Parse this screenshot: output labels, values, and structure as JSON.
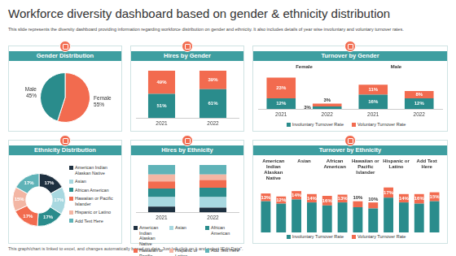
{
  "title": "Workforce diversity dashboard based on gender & ethnicity distribution",
  "subtitle": "This slide represents the diversity dashboard providing information regarding workforce distribution on gender and ethnicity. It also includes details of year wise involuntary and voluntary turnover rates.",
  "footer": "This graph/chart is linked to excel, and changes automatically based on data. Just left click on it and select \"Edit Data\".",
  "chart_data": [
    {
      "type": "pie",
      "title": "Gender Distribution",
      "categories": [
        "Female",
        "Male"
      ],
      "values": [
        55,
        45
      ],
      "value_labels": [
        "55%",
        "45%"
      ],
      "colors": [
        "#f26b4f",
        "#2a8c8c"
      ],
      "data_labels": true
    },
    {
      "type": "bar",
      "title": "Hires by Gender",
      "stacked": true,
      "categories": [
        "2021",
        "2022"
      ],
      "series": [
        {
          "color": "#2a8c8c",
          "values": [
            51,
            61
          ],
          "value_labels": [
            "51%",
            "61%"
          ]
        },
        {
          "color": "#f26b4f",
          "values": [
            49,
            39
          ],
          "value_labels": [
            "49%",
            "39%"
          ]
        }
      ],
      "ylim": [
        0,
        100
      ],
      "tick_labels": "x",
      "grid": false,
      "data_labels": true
    },
    {
      "type": "bar",
      "title": "Turnover by Gender",
      "stacked": true,
      "categories": [
        "2021",
        "2022",
        "2021",
        "2022"
      ],
      "group_labels": [
        "Female",
        "Male"
      ],
      "series": [
        {
          "name": "Involuntary Turnover Rate",
          "color": "#2a8c8c",
          "values": [
            12,
            3,
            16,
            12
          ],
          "value_labels": [
            "12%",
            "3%",
            "16%",
            "12%"
          ]
        },
        {
          "name": "Voluntary Turnover Rate",
          "color": "#f26b4f",
          "values": [
            23,
            3,
            11,
            8
          ],
          "value_labels": [
            "23%",
            "3%",
            "11%",
            "8%"
          ]
        }
      ],
      "ylim": [
        0,
        40
      ],
      "tick_labels": "x",
      "grid": false,
      "legend": "bottom",
      "data_labels": true
    },
    {
      "type": "doughnut",
      "title": "Ethnicity Distribution",
      "categories": [
        "American Indian Alaskan Native",
        "Asian",
        "African American",
        "Hawaiian or Pacific Islander",
        "Hispanic or Latino",
        "Add Text Here"
      ],
      "values": [
        17,
        17,
        17,
        17,
        15,
        17
      ],
      "value_labels": [
        "17%",
        "17%",
        "17%",
        "17%",
        "15%",
        "17%"
      ],
      "colors": [
        "#1e3040",
        "#a8d8e0",
        "#2a8c8c",
        "#f26b4f",
        "#f3b6a4",
        "#5fb3b8"
      ],
      "legend": "right",
      "data_labels": true
    },
    {
      "type": "bar",
      "title": "Hires by Ethnicity",
      "stacked": true,
      "categories": [
        "2021",
        "2022"
      ],
      "series": [
        {
          "name": "American Indian Alaskan Native",
          "color": "#1e3040",
          "values": [
            12,
            10
          ]
        },
        {
          "name": "Asian",
          "color": "#a8d8e0",
          "values": [
            20,
            22
          ]
        },
        {
          "name": "African American",
          "color": "#2a8c8c",
          "values": [
            18,
            20
          ]
        },
        {
          "name": "Hawaiian or Pacific Islander",
          "color": "#f26b4f",
          "values": [
            15,
            16
          ]
        },
        {
          "name": "Hispanic or Latino",
          "color": "#f3b6a4",
          "values": [
            15,
            12
          ]
        },
        {
          "name": "Add Text Here",
          "color": "#5fb3b8",
          "values": [
            20,
            20
          ]
        }
      ],
      "ylim": [
        0,
        100
      ],
      "tick_labels": "x",
      "grid": false,
      "legend": "bottom"
    },
    {
      "type": "bar",
      "title": "Turnover by Ethnicity",
      "stacked": true,
      "categories": [
        null,
        null,
        null,
        null,
        null,
        null,
        null,
        null,
        null,
        null,
        null,
        null
      ],
      "group_labels": [
        "American Indian Alaskan Native",
        "Asian",
        "African American",
        "Hawaiian or Pacific Islander",
        "Hispanic or Latino",
        "Add Text Here"
      ],
      "series": [
        {
          "name": "Involuntary Turnover Rate",
          "color": "#2a8c8c",
          "values": [
            52,
            48,
            55,
            50,
            45,
            50,
            42,
            40,
            58,
            50,
            48,
            52
          ]
        },
        {
          "name": "Voluntary Turnover Rate",
          "color": "#f26b4f",
          "values": [
            13,
            12,
            14,
            14,
            16,
            13,
            10,
            10,
            17,
            14,
            16,
            15
          ],
          "value_labels": [
            "13%",
            "12%",
            "14%",
            "14%",
            "16%",
            "13%",
            "10%",
            "10%",
            "17%",
            "14%",
            "16%",
            "15%"
          ],
          "data_labels": true
        }
      ],
      "ylim": [
        0,
        80
      ],
      "tick_labels": false,
      "grid": false,
      "legend": "bottom"
    }
  ]
}
